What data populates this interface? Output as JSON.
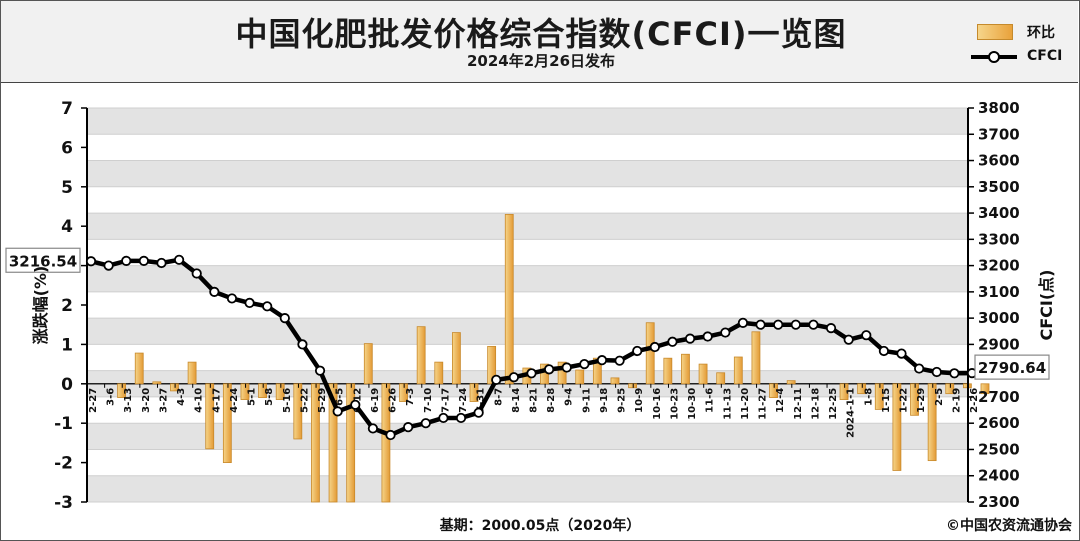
{
  "header": {
    "title": "中国化肥批发价格综合指数(CFCI)一览图",
    "subtitle": "2024年2月26日发布"
  },
  "legend": {
    "bar_label": "环比",
    "line_label": "CFCI"
  },
  "footer": {
    "base_note": "基期：2000.05点（2020年）",
    "source": "©中国农资流通协会"
  },
  "chart_data": {
    "type": "bar",
    "categories": [
      "2-27",
      "3-6",
      "3-13",
      "3-20",
      "3-27",
      "4-3",
      "4-10",
      "4-17",
      "4-24",
      "5-1",
      "5-8",
      "5-16",
      "5-22",
      "5-29",
      "6-5",
      "6-12",
      "6-19",
      "6-26",
      "7-3",
      "7-10",
      "7-17",
      "7-24",
      "7-31",
      "8-7",
      "8-14",
      "8-21",
      "8-28",
      "9-4",
      "9-11",
      "9-18",
      "9-25",
      "10-9",
      "10-16",
      "10-23",
      "10-30",
      "11-6",
      "11-13",
      "11-20",
      "11-27",
      "12-4",
      "12-11",
      "12-18",
      "12-25",
      "2024-1-1",
      "1-8",
      "1-15",
      "1-22",
      "1-29",
      "2-5",
      "2-19",
      "2-26"
    ],
    "series": [
      {
        "name": "环比",
        "type": "bar",
        "axis": "left",
        "values": [
          0.0,
          -0.35,
          0.78,
          0.05,
          -0.18,
          0.55,
          -1.65,
          -2.0,
          -0.4,
          -0.35,
          -0.4,
          -1.4,
          -3.0,
          -3.0,
          -3.0,
          1.02,
          -3.0,
          -0.45,
          1.45,
          0.55,
          1.3,
          -0.45,
          0.95,
          4.3,
          0.4,
          0.5,
          0.55,
          0.35,
          0.65,
          0.15,
          -0.1,
          1.55,
          0.65,
          0.75,
          0.5,
          0.28,
          0.68,
          1.32,
          -0.35,
          0.08,
          0.0,
          0.0,
          -0.4,
          -0.25,
          -0.65,
          -2.2,
          -0.8,
          -1.95,
          -0.25,
          -0.1,
          -0.25
        ]
      },
      {
        "name": "CFCI",
        "type": "line",
        "axis": "right",
        "values": [
          3216.54,
          3200,
          3218,
          3218,
          3210,
          3222,
          3170,
          3100,
          3075,
          3058,
          3045,
          3000,
          2900,
          2800,
          2645,
          2670,
          2580,
          2555,
          2585,
          2600,
          2620,
          2620,
          2640,
          2765,
          2775,
          2790,
          2805,
          2812,
          2825,
          2840,
          2838,
          2875,
          2890,
          2910,
          2922,
          2930,
          2945,
          2982,
          2975,
          2975,
          2975,
          2975,
          2962,
          2918,
          2935,
          2875,
          2865,
          2808,
          2795,
          2790,
          2790.64
        ]
      }
    ],
    "y_left": {
      "label": "涨跌幅(%)",
      "ticks": [
        -3,
        -2,
        -1,
        0,
        1,
        2,
        3,
        4,
        5,
        6,
        7
      ],
      "range": [
        -3,
        7
      ]
    },
    "y_right": {
      "label": "CFCI(点)",
      "ticks": [
        2300,
        2400,
        2500,
        2600,
        2700,
        2800,
        2900,
        3000,
        3100,
        3200,
        3300,
        3400,
        3500,
        3600,
        3700,
        3800
      ],
      "range": [
        2300,
        3800
      ]
    },
    "callouts": {
      "first": "3216.54",
      "last": "2790.64"
    },
    "colors": {
      "bar_light": "#f6d58a",
      "bar_dark": "#e39a35",
      "bar_edge": "#c8892b",
      "line": "#000000",
      "grid_band": "#e3e3e3"
    },
    "grid": true,
    "legend_position": "top-right"
  }
}
